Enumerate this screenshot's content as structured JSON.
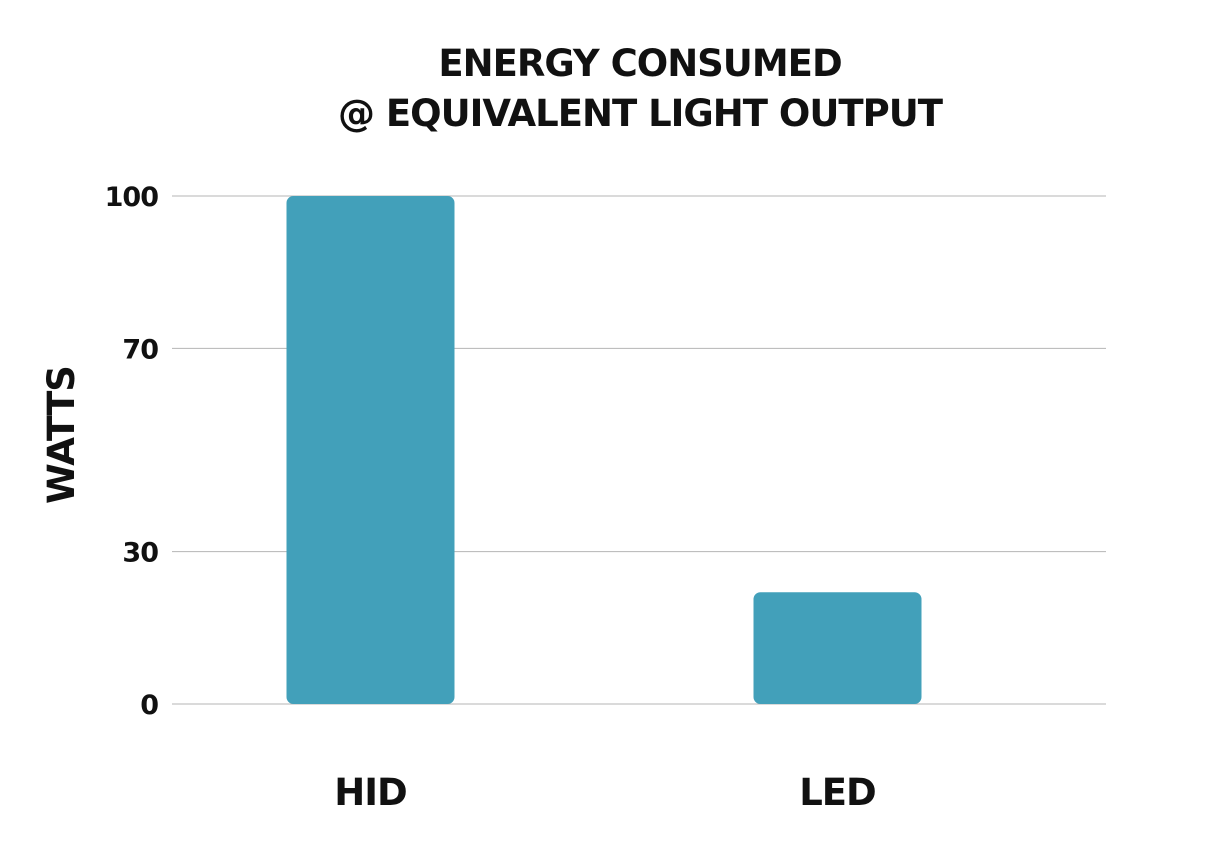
{
  "chart_data": {
    "type": "bar",
    "title_lines": [
      "ENERGY CONSUMED",
      "@ EQUIVALENT LIGHT OUTPUT"
    ],
    "xlabel": "",
    "ylabel": "WATTS",
    "categories": [
      "HID",
      "LED"
    ],
    "values": [
      100,
      22
    ],
    "y_ticks": [
      0,
      30,
      70,
      100
    ],
    "ylim": [
      0,
      100
    ],
    "grid": true,
    "bar_color": "#42a0ba"
  }
}
